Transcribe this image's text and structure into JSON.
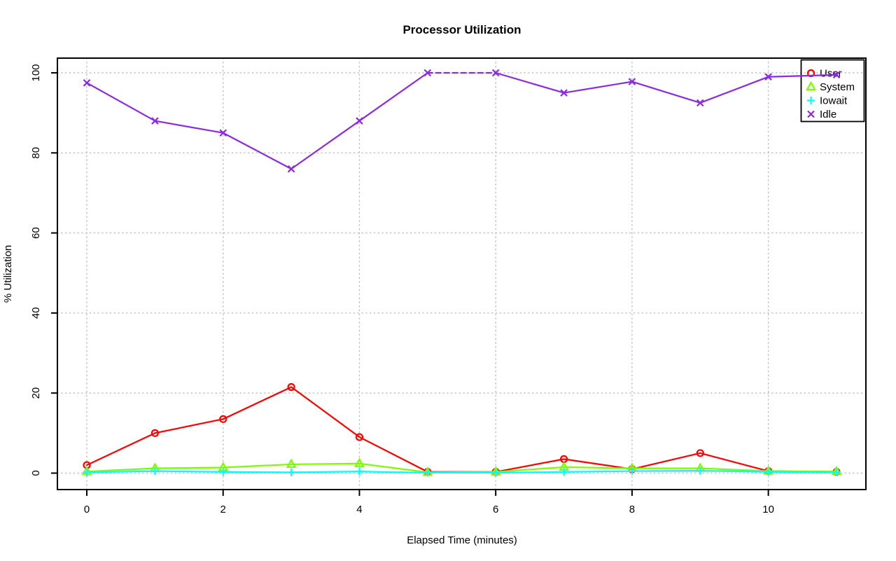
{
  "chart_data": {
    "type": "line",
    "title": "Processor Utilization",
    "xlabel": "Elapsed Time (minutes)",
    "ylabel": "% Utilization",
    "x": [
      0,
      1,
      2,
      3,
      4,
      5,
      6,
      7,
      8,
      9,
      10,
      11
    ],
    "x_ticks": [
      0,
      2,
      4,
      6,
      8,
      10
    ],
    "y_ticks": [
      0,
      20,
      40,
      60,
      80,
      100
    ],
    "xlim": [
      0,
      11
    ],
    "ylim": [
      0,
      100
    ],
    "grid": "dotted",
    "legend_position": "topright",
    "series": [
      {
        "name": "User",
        "color": "#ff0000",
        "marker": "circle",
        "values": [
          2,
          10,
          13.5,
          21.5,
          9,
          0.3,
          0.3,
          3.5,
          1,
          5,
          0.5,
          0.3
        ]
      },
      {
        "name": "System",
        "color": "#7cfc00",
        "marker": "triangle",
        "values": [
          0.4,
          1.2,
          1.4,
          2.2,
          2.4,
          0.2,
          0.3,
          1.5,
          1.2,
          1.2,
          0.5,
          0.4
        ]
      },
      {
        "name": "Iowait",
        "color": "#00ffff",
        "marker": "plus",
        "values": [
          0.2,
          0.5,
          0.3,
          0.2,
          0.4,
          0.1,
          0.1,
          0.3,
          0.5,
          0.6,
          0.3,
          0.2
        ]
      },
      {
        "name": "Idle",
        "color": "#8a2be2",
        "marker": "x",
        "values": [
          97.5,
          88,
          85,
          76,
          88,
          100,
          100,
          95,
          97.8,
          92.5,
          99,
          99.5
        ],
        "dashed_between": [
          5,
          6
        ]
      }
    ],
    "colors": {
      "grid": "#bdbdbd",
      "axis": "#000000",
      "background": "#ffffff"
    }
  }
}
